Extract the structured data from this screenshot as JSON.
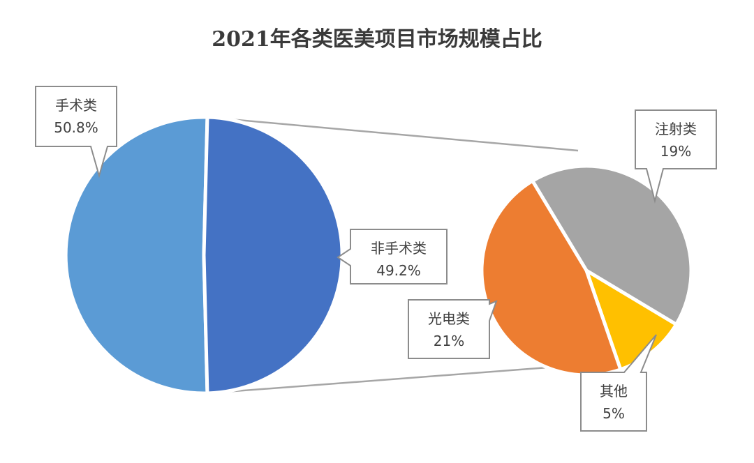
{
  "chart_data": {
    "type": "pie",
    "title": "2021年各类医美项目市场规模占比",
    "main_pie": {
      "slices": [
        {
          "label": "手术类",
          "value_label": "50.8%",
          "value": 50.8,
          "color": "#5b9bd5"
        },
        {
          "label": "非手术类",
          "value_label": "49.2%",
          "value": 49.2,
          "color": "#4472c4"
        }
      ]
    },
    "sub_pie": {
      "breakdown_of": "非手术类",
      "slices": [
        {
          "label": "注射类",
          "value_label": "19%",
          "value": 19,
          "color": "#a5a5a5"
        },
        {
          "label": "其他",
          "value_label": "5%",
          "value": 5,
          "color": "#ffc000"
        },
        {
          "label": "光电类",
          "value_label": "21%",
          "value": 21,
          "color": "#ed7d31"
        }
      ]
    }
  }
}
